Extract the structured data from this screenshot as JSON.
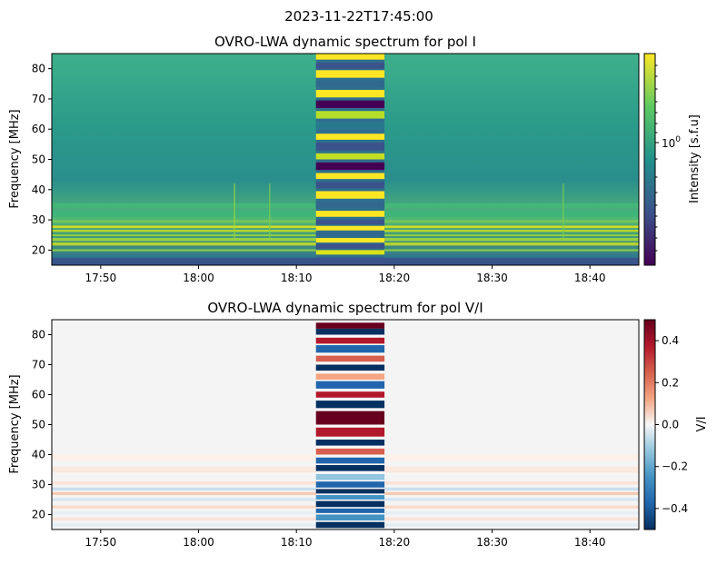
{
  "suptitle": "2023-11-22T17:45:00",
  "colors": {
    "viridis": [
      "#440154",
      "#3b528b",
      "#21918c",
      "#5ec962",
      "#fde725"
    ],
    "rdbu": [
      "#053061",
      "#2166ac",
      "#4393c3",
      "#92c5de",
      "#f7f7f7",
      "#f4a582",
      "#d6604d",
      "#b2182b",
      "#67001f"
    ]
  },
  "chart_data": [
    {
      "type": "heatmap",
      "title": "OVRO-LWA dynamic spectrum for pol I",
      "ylabel": "Frequency [MHz]",
      "xlabel": "",
      "x_range_min": [
        17.75,
        18.75
      ],
      "xticks": [
        {
          "label": "17:50",
          "value": 17.8333
        },
        {
          "label": "18:00",
          "value": 18.0
        },
        {
          "label": "18:10",
          "value": 18.1667
        },
        {
          "label": "18:20",
          "value": 18.3333
        },
        {
          "label": "18:30",
          "value": 18.5
        },
        {
          "label": "18:40",
          "value": 18.6667
        }
      ],
      "ylim": [
        15,
        85
      ],
      "yticks": [
        20,
        30,
        40,
        50,
        60,
        70,
        80
      ],
      "burst_interval": [
        "18:12",
        "18:19"
      ],
      "colorbar": {
        "label": "Intensity [s.f.u]",
        "scale": "log",
        "major_tick_label": "10",
        "major_tick_exp": "0",
        "colormap": "viridis"
      }
    },
    {
      "type": "heatmap",
      "title": "OVRO-LWA dynamic spectrum for pol V/I",
      "ylabel": "Frequency [MHz]",
      "xlabel": "",
      "x_range_min": [
        17.75,
        18.75
      ],
      "xticks": [
        {
          "label": "17:50",
          "value": 17.8333
        },
        {
          "label": "18:00",
          "value": 18.0
        },
        {
          "label": "18:10",
          "value": 18.1667
        },
        {
          "label": "18:20",
          "value": 18.3333
        },
        {
          "label": "18:30",
          "value": 18.5
        },
        {
          "label": "18:40",
          "value": 18.6667
        }
      ],
      "ylim": [
        15,
        85
      ],
      "yticks": [
        20,
        30,
        40,
        50,
        60,
        70,
        80
      ],
      "burst_interval": [
        "18:12",
        "18:19"
      ],
      "colorbar": {
        "label": "V/I",
        "scale": "linear",
        "range": [
          -0.5,
          0.5
        ],
        "ticks": [
          {
            "label": "0.4",
            "value": 0.4
          },
          {
            "label": "0.2",
            "value": 0.2
          },
          {
            "label": "0.0",
            "value": 0.0
          },
          {
            "label": "−0.2",
            "value": -0.2
          },
          {
            "label": "−0.4",
            "value": -0.4
          }
        ],
        "colormap": "rdbu"
      }
    }
  ]
}
